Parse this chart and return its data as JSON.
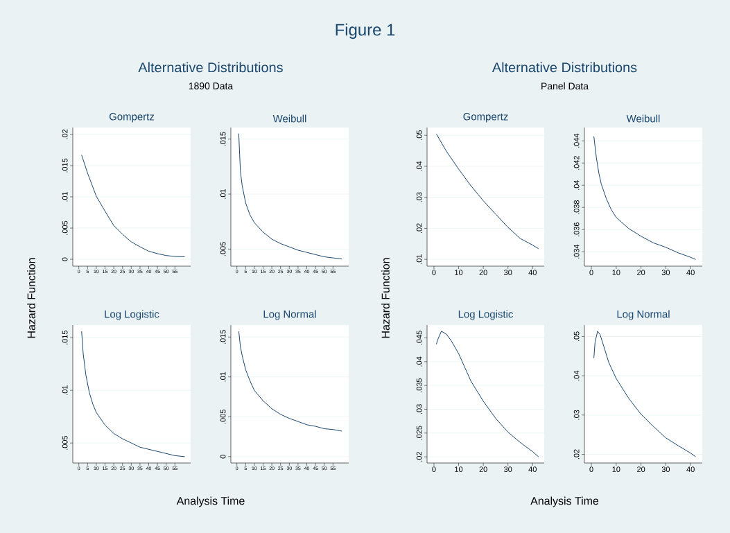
{
  "chart_data": [
    {
      "type": "line",
      "title": "Gompertz",
      "annotations": [
        "Figure 1",
        "Alternative Distributions",
        "1890 Data"
      ],
      "ylabel": "Hazard Function",
      "color": "#1a476f",
      "line_style": "solid",
      "grid": "y",
      "x": [
        1.6,
        5,
        10,
        15,
        20,
        25,
        30,
        35,
        40,
        45,
        50,
        55,
        60.6
      ],
      "values": [
        0.0167,
        0.0138,
        0.0101,
        0.0077,
        0.0054,
        0.004,
        0.0028,
        0.002,
        0.0013,
        0.0009,
        0.0006,
        0.00045,
        0.0004
      ],
      "xlim": [
        -3.45,
        64
      ],
      "xticks": [
        0,
        5,
        10,
        15,
        20,
        25,
        30,
        35,
        40,
        45,
        50,
        55
      ],
      "ylim": [
        -0.0011,
        0.0211
      ],
      "yticks": [
        0,
        {
          "value": 0.005,
          "label": ".005"
        },
        {
          "value": 0.01,
          "label": ".01"
        },
        {
          "value": 0.015,
          "label": ".015"
        },
        {
          "value": 0.02,
          "label": ".02"
        }
      ]
    },
    {
      "type": "line",
      "title": "Weibull",
      "color": "#1a476f",
      "line_style": "solid",
      "grid": "y",
      "x": [
        1.06,
        2,
        3,
        5,
        7.5,
        10,
        15,
        20,
        25,
        30,
        35,
        40,
        45,
        50,
        55,
        60
      ],
      "values": [
        0.0155,
        0.0121,
        0.0108,
        0.0092,
        0.0081,
        0.0074,
        0.00655,
        0.0059,
        0.0055,
        0.0052,
        0.0049,
        0.0047,
        0.0045,
        0.0043,
        0.0042,
        0.0041
      ],
      "xlim": [
        -3.45,
        64
      ],
      "xticks": [
        0,
        5,
        10,
        15,
        20,
        25,
        30,
        35,
        40,
        45,
        50,
        55
      ],
      "ylim": [
        0.00345,
        0.01605
      ],
      "yticks": [
        {
          "value": 0.005,
          "label": ".005"
        },
        {
          "value": 0.01,
          "label": ".01"
        },
        {
          "value": 0.015,
          "label": ".015"
        }
      ]
    },
    {
      "type": "line",
      "title": "Log Logistic",
      "xlabel": "Analysis Time",
      "color": "#1a476f",
      "line_style": "solid",
      "grid": "y",
      "x": [
        1.6,
        2.5,
        4,
        6,
        8,
        10,
        15,
        20,
        25,
        30,
        35,
        40,
        45,
        50,
        55,
        60.6
      ],
      "values": [
        0.0156,
        0.0135,
        0.0115,
        0.0098,
        0.0087,
        0.0079,
        0.0067,
        0.0059,
        0.0054,
        0.005,
        0.0046,
        0.0044,
        0.0042,
        0.004,
        0.0038,
        0.0037
      ],
      "xlim": [
        -3.45,
        64
      ],
      "xticks": [
        0,
        5,
        10,
        15,
        20,
        25,
        30,
        35,
        40,
        45,
        50,
        55
      ],
      "ylim": [
        0.0031,
        0.0162
      ],
      "yticks": [
        {
          "value": 0.005,
          "label": ".005"
        },
        {
          "value": 0.01,
          "label": ".01"
        },
        {
          "value": 0.015,
          "label": ".015"
        }
      ]
    },
    {
      "type": "line",
      "title": "Log Normal",
      "color": "#1a476f",
      "line_style": "solid",
      "grid": "y",
      "x": [
        1.1,
        2,
        3,
        5,
        7.5,
        10,
        15,
        20,
        25,
        30,
        35,
        40,
        45,
        50,
        55,
        60
      ],
      "values": [
        0.0157,
        0.0138,
        0.0127,
        0.0109,
        0.0095,
        0.0083,
        0.007,
        0.006,
        0.0053,
        0.0048,
        0.0044,
        0.004,
        0.0038,
        0.0035,
        0.0034,
        0.0032
      ],
      "xlim": [
        -3.45,
        64
      ],
      "xticks": [
        0,
        5,
        10,
        15,
        20,
        25,
        30,
        35,
        40,
        45,
        50,
        55
      ],
      "ylim": [
        -0.0008,
        0.0165
      ],
      "yticks": [
        0,
        {
          "value": 0.005,
          "label": ".005"
        },
        {
          "value": 0.01,
          "label": ".01"
        },
        {
          "value": 0.015,
          "label": ".015"
        }
      ]
    },
    {
      "type": "line",
      "title": "Gompertz",
      "annotations": [
        "Alternative Distributions",
        "Panel Data"
      ],
      "ylabel": "Hazard Function",
      "color": "#1a476f",
      "line_style": "solid",
      "grid": "y",
      "x": [
        1,
        5,
        10,
        15,
        20,
        25,
        30,
        35,
        40,
        42.4
      ],
      "values": [
        0.0504,
        0.0449,
        0.0391,
        0.0337,
        0.0289,
        0.0246,
        0.0203,
        0.0167,
        0.0146,
        0.0134
      ],
      "xlim": [
        -2.8,
        44.7
      ],
      "xticks": [
        0,
        10,
        20,
        30,
        40
      ],
      "ylim": [
        0.0078,
        0.0525
      ],
      "yticks": [
        {
          "value": 0.01,
          "label": ".01"
        },
        {
          "value": 0.02,
          "label": ".02"
        },
        {
          "value": 0.03,
          "label": ".03"
        },
        {
          "value": 0.04,
          "label": ".04"
        },
        {
          "value": 0.05,
          "label": ".05"
        }
      ]
    },
    {
      "type": "line",
      "title": "Weibull",
      "color": "#1a476f",
      "line_style": "solid",
      "grid": "y",
      "x": [
        1,
        2,
        3,
        4,
        6,
        8,
        10,
        15,
        20,
        25,
        30,
        35,
        40,
        42
      ],
      "values": [
        0.0444,
        0.0425,
        0.0411,
        0.0401,
        0.0388,
        0.0378,
        0.0371,
        0.0361,
        0.0354,
        0.0348,
        0.0344,
        0.0339,
        0.0335,
        0.0333
      ],
      "xlim": [
        -2.8,
        44.7
      ],
      "xticks": [
        0,
        10,
        20,
        30,
        40
      ],
      "ylim": [
        0.0327,
        0.0452
      ],
      "yticks": [
        {
          "value": 0.034,
          "label": ".034"
        },
        {
          "value": 0.036,
          "label": ".036"
        },
        {
          "value": 0.038,
          "label": ".038"
        },
        {
          "value": 0.04,
          "label": ".04"
        },
        {
          "value": 0.042,
          "label": ".042"
        },
        {
          "value": 0.044,
          "label": ".044"
        }
      ]
    },
    {
      "type": "line",
      "title": "Log Logistic",
      "xlabel": "Analysis Time",
      "color": "#1a476f",
      "line_style": "solid",
      "grid": "y",
      "x": [
        1,
        1.5,
        3,
        5,
        7,
        10,
        15,
        20,
        25,
        30,
        35,
        40,
        42.4
      ],
      "values": [
        0.0437,
        0.0446,
        0.0464,
        0.0458,
        0.0444,
        0.0417,
        0.0359,
        0.0317,
        0.0281,
        0.0252,
        0.023,
        0.0211,
        0.02
      ],
      "xlim": [
        -2.8,
        44.7
      ],
      "xticks": [
        0,
        10,
        20,
        30,
        40
      ],
      "ylim": [
        0.0187,
        0.0477
      ],
      "yticks": [
        {
          "value": 0.02,
          "label": ".02"
        },
        {
          "value": 0.025,
          "label": ".025"
        },
        {
          "value": 0.03,
          "label": ".03"
        },
        {
          "value": 0.035,
          "label": ".035"
        },
        {
          "value": 0.04,
          "label": ".04"
        },
        {
          "value": 0.045,
          "label": ".045"
        }
      ]
    },
    {
      "type": "line",
      "title": "Log Normal",
      "color": "#1a476f",
      "line_style": "solid",
      "grid": "y",
      "x": [
        1,
        1.5,
        2.5,
        3.5,
        5,
        7,
        10,
        15,
        20,
        25,
        30,
        35,
        40,
        42
      ],
      "values": [
        0.0445,
        0.0486,
        0.0513,
        0.0505,
        0.0475,
        0.0434,
        0.0393,
        0.0343,
        0.0302,
        0.0271,
        0.0242,
        0.0222,
        0.0203,
        0.0194
      ],
      "xlim": [
        -2.8,
        44.7
      ],
      "xticks": [
        0,
        10,
        20,
        30,
        40
      ],
      "ylim": [
        0.0178,
        0.0529
      ],
      "yticks": [
        {
          "value": 0.02,
          "label": ".02"
        },
        {
          "value": 0.03,
          "label": ".03"
        },
        {
          "value": 0.04,
          "label": ".04"
        },
        {
          "value": 0.05,
          "label": ".05"
        }
      ]
    }
  ]
}
